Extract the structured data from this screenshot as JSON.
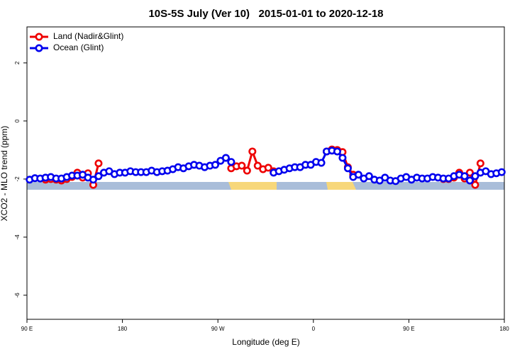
{
  "chart_data": {
    "type": "line",
    "title": "10S-5S July (Ver 10)   2015-01-01 to 2020-12-18",
    "x_label": "Longitude (deg E)",
    "y_label": "XCO2 - MLO trend (ppm)",
    "xlim": [
      90,
      540
    ],
    "ylim": [
      -6.83,
      3.24
    ],
    "xticks": [
      {
        "value": 90,
        "label": "90 E"
      },
      180,
      {
        "value": 270,
        "label": "90 W"
      },
      {
        "value": 360,
        "label": "0"
      },
      {
        "value": 450,
        "label": "90 E"
      },
      {
        "value": 540,
        "label": "180"
      }
    ],
    "yticks": [
      -6,
      -4,
      -2,
      0,
      2
    ],
    "legend": "top-left",
    "x": [
      92.5,
      97.5,
      102.5,
      107.5,
      112.5,
      117.5,
      122.5,
      127.5,
      132.5,
      137.5,
      142.5,
      147.5,
      152.5,
      157.5,
      162.5,
      167.5,
      172.5,
      177.5,
      182.5,
      187.5,
      192.5,
      197.5,
      202.5,
      207.5,
      212.5,
      217.5,
      222.5,
      227.5,
      232.5,
      237.5,
      242.5,
      247.5,
      252.5,
      257.5,
      262.5,
      267.5,
      272.5,
      277.5,
      282.5,
      287.5,
      292.5,
      297.5,
      302.5,
      307.5,
      312.5,
      317.5,
      322.5,
      327.5,
      332.5,
      337.5,
      342.5,
      347.5,
      352.5,
      357.5,
      362.5,
      367.5,
      372.5,
      377.5,
      382.5,
      387.5,
      392.5,
      397.5,
      402.5,
      407.5,
      412.5,
      417.5,
      422.5,
      427.5,
      432.5,
      437.5,
      442.5,
      447.5,
      452.5,
      457.5,
      462.5,
      467.5,
      472.5,
      477.5,
      482.5,
      487.5,
      492.5,
      497.5,
      502.5,
      507.5,
      512.5,
      517.5,
      522.5,
      527.5,
      532.5,
      537.5
    ],
    "series": [
      {
        "name": "Land (Nadir&Glint)",
        "color": "#ee0000",
        "values": [
          null,
          null,
          null,
          -2.02,
          -2.0,
          -2.02,
          -2.05,
          -2.0,
          -1.93,
          -1.78,
          -1.95,
          -1.8,
          -2.2,
          -1.46,
          null,
          null,
          null,
          null,
          null,
          null,
          null,
          null,
          null,
          null,
          null,
          null,
          null,
          null,
          null,
          null,
          null,
          null,
          null,
          null,
          null,
          null,
          null,
          null,
          -1.63,
          -1.56,
          -1.54,
          -1.71,
          -1.05,
          -1.54,
          -1.66,
          -1.61,
          -1.73,
          null,
          null,
          null,
          null,
          null,
          null,
          null,
          null,
          null,
          -1.05,
          -0.98,
          -1.0,
          -1.07,
          -1.59,
          -1.85,
          null,
          null,
          null,
          null,
          null,
          null,
          null,
          null,
          null,
          null,
          null,
          null,
          null,
          null,
          null,
          null,
          -2.0,
          -2.0,
          -1.95,
          -1.78,
          -1.98,
          -1.78,
          -2.2,
          -1.46,
          null,
          null,
          null,
          null
        ]
      },
      {
        "name": "Ocean (Glint)",
        "color": "#0000ee",
        "values": [
          -2.02,
          -1.97,
          -1.98,
          -1.95,
          -1.93,
          -1.98,
          -1.98,
          -1.93,
          -1.88,
          -1.88,
          -1.85,
          -1.95,
          -2.02,
          -1.9,
          -1.78,
          -1.73,
          -1.83,
          -1.78,
          -1.78,
          -1.73,
          -1.76,
          -1.76,
          -1.76,
          -1.71,
          -1.76,
          -1.73,
          -1.71,
          -1.66,
          -1.59,
          -1.63,
          -1.56,
          -1.51,
          -1.54,
          -1.59,
          -1.54,
          -1.51,
          -1.37,
          -1.27,
          -1.41,
          null,
          null,
          null,
          null,
          null,
          null,
          null,
          -1.78,
          -1.73,
          -1.68,
          -1.63,
          -1.59,
          -1.59,
          -1.51,
          -1.51,
          -1.41,
          -1.44,
          -1.05,
          -1.02,
          -1.05,
          -1.27,
          -1.63,
          -1.93,
          -1.85,
          -1.98,
          -1.9,
          -2.02,
          -2.05,
          -1.95,
          -2.05,
          -2.07,
          -1.98,
          -1.93,
          -2.02,
          -1.95,
          -1.98,
          -1.98,
          -1.93,
          -1.95,
          -1.98,
          -1.98,
          -1.9,
          -1.85,
          -1.9,
          -2.05,
          -1.9,
          -1.78,
          -1.73,
          -1.83,
          -1.8,
          -1.76
        ]
      }
    ]
  }
}
